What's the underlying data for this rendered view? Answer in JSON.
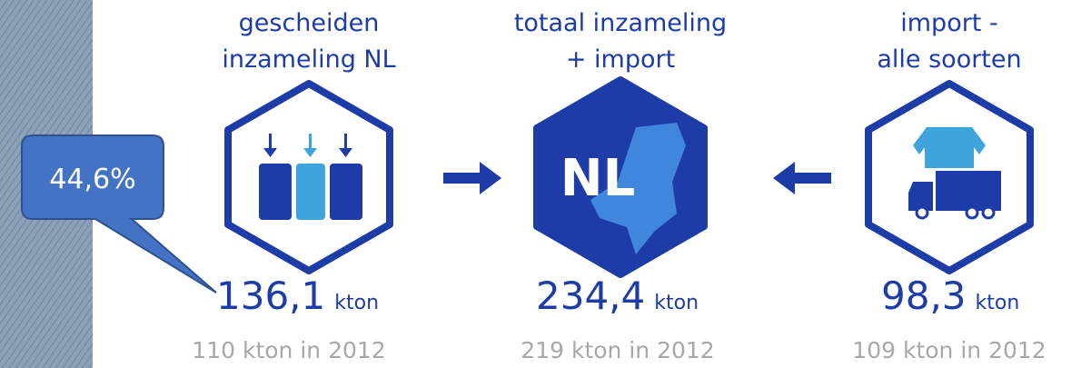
{
  "callout": "44,6%",
  "panels": [
    {
      "title": [
        "gescheiden",
        "inzameling NL"
      ],
      "value": "136,1",
      "unit": "kton",
      "previous": "110 kton in 2012"
    },
    {
      "title": [
        "totaal inzameling",
        "+ import"
      ],
      "icon_text": "NL",
      "value": "234,4",
      "unit": "kton",
      "previous": "219 kton in 2012"
    },
    {
      "title": [
        "import -",
        "alle soorten"
      ],
      "value": "98,3",
      "unit": "kton",
      "previous": "109 kton in 2012"
    }
  ]
}
